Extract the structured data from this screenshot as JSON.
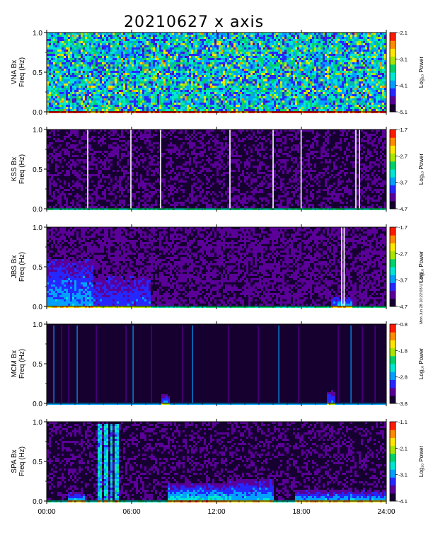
{
  "chart_data": [
    {
      "type": "heatmap",
      "title": "20210627 x axis",
      "station": "VNA Bx",
      "ylabel": "Freq (Hz)",
      "ylim": [
        0.0,
        1.0
      ],
      "yticks": [
        "0.0",
        "0.5",
        "1.0"
      ],
      "colorbar_label": "Log₁₀ Power",
      "colorbar_ticks": [
        "-2.1",
        "-3.1",
        "-4.1",
        "-5.1"
      ],
      "colorbar_range": [
        -5.1,
        -2.1
      ],
      "baseline_level": 0.55,
      "noise_level": 0.38,
      "bursts": [],
      "hf_bursts": [],
      "broadband": [],
      "gaps": []
    },
    {
      "type": "heatmap",
      "station": "KSS Bx",
      "ylabel": "Freq (Hz)",
      "ylim": [
        0.0,
        1.0
      ],
      "yticks": [
        "0.0",
        "0.5",
        "1.0"
      ],
      "colorbar_label": "Log₁₀ Power",
      "colorbar_ticks": [
        "-1.7",
        "-2.7",
        "-3.7",
        "-4.7"
      ],
      "colorbar_range": [
        -4.7,
        -1.7
      ],
      "baseline_level": 0.12,
      "noise_level": 0.1,
      "bursts": [],
      "hf_bursts": [],
      "broadband": [],
      "gaps": [
        2.9,
        5.95,
        8.05,
        12.95,
        16.0,
        17.98,
        21.85,
        22.1
      ]
    },
    {
      "type": "heatmap",
      "station": "JBS Bx",
      "ylabel": "Freq (Hz)",
      "ylim": [
        0.0,
        1.0
      ],
      "yticks": [
        "0.0",
        "0.5",
        "1.0"
      ],
      "colorbar_label": "Log₁₀ Power",
      "colorbar_ticks": [
        "-1.7",
        "-2.7",
        "-3.7",
        "-4.7"
      ],
      "colorbar_range": [
        -4.7,
        -1.7
      ],
      "baseline_level": 0.15,
      "noise_level": 0.12,
      "bursts": [
        {
          "t0": 0.0,
          "t1": 3.2,
          "h": 0.6,
          "lvl": 0.22
        },
        {
          "t0": 3.2,
          "t1": 7.3,
          "h": 0.4,
          "lvl": 0.12
        },
        {
          "t0": 20.0,
          "t1": 21.5,
          "h": 0.12,
          "lvl": 0.25
        }
      ],
      "hf_bursts": [],
      "broadband": [],
      "gaps": [
        20.85,
        21.02
      ]
    },
    {
      "type": "heatmap",
      "station": "MCM Bx",
      "ylabel": "Freq (Hz)",
      "ylim": [
        0.0,
        1.0
      ],
      "yticks": [
        "0.0",
        "0.5",
        "1.0"
      ],
      "colorbar_label": "Log₁₀ Power",
      "colorbar_ticks": [
        "-0.8",
        "-1.8",
        "-2.8",
        "-3.8"
      ],
      "colorbar_range": [
        -3.8,
        -0.8
      ],
      "baseline_level": 0.0,
      "noise_level": 0.03,
      "bursts": [
        {
          "t0": 8.1,
          "t1": 8.6,
          "h": 0.15,
          "lvl": 0.3
        },
        {
          "t0": 19.7,
          "t1": 20.3,
          "h": 0.2,
          "lvl": 0.3
        }
      ],
      "hf_bursts": [],
      "broadband": [
        0.5,
        1.05,
        1.55,
        2.15,
        3.5,
        5.6,
        6.1,
        7.4,
        9.6,
        10.3,
        12.85,
        14.95,
        16.4,
        17.8,
        20.6,
        21.5,
        22.3,
        23.2
      ],
      "gaps": []
    },
    {
      "type": "heatmap",
      "station": "SPA Bx",
      "ylabel": "Freq (Hz)",
      "ylim": [
        0.0,
        1.0
      ],
      "yticks": [
        "0.0",
        "0.5",
        "1.0"
      ],
      "colorbar_label": "Log₁₀ Power",
      "colorbar_ticks": [
        "-1.1",
        "-2.1",
        "-3.1",
        "-4.1"
      ],
      "colorbar_range": [
        -4.1,
        -1.1
      ],
      "baseline_level": 0.1,
      "noise_level": 0.1,
      "bursts": [
        {
          "t0": 1.5,
          "t1": 2.7,
          "h": 0.12,
          "lvl": 0.35
        },
        {
          "t0": 8.5,
          "t1": 12.7,
          "h": 0.25,
          "lvl": 0.35
        },
        {
          "t0": 12.7,
          "t1": 16.0,
          "h": 0.3,
          "lvl": 0.28
        },
        {
          "t0": 17.5,
          "t1": 24.0,
          "h": 0.15,
          "lvl": 0.3
        }
      ],
      "hf_bursts": [
        {
          "t0": 3.4,
          "t1": 5.2,
          "h": 1.0,
          "lvl": 0.42
        }
      ],
      "broadband": [],
      "gaps": []
    }
  ],
  "x_axis": {
    "range_hours": [
      0,
      24
    ],
    "tick_labels": [
      "00:00",
      "06:00",
      "12:00",
      "18:00",
      "24:00"
    ]
  },
  "side_note": "Mon Jun 28 10:22:03 UT 2021",
  "colormap": [
    "#160030",
    "#5a0098",
    "#2626ff",
    "#00a0ff",
    "#00e6d2",
    "#00d26a",
    "#a8e600",
    "#ffe600",
    "#ff8c00",
    "#ff1a00"
  ]
}
